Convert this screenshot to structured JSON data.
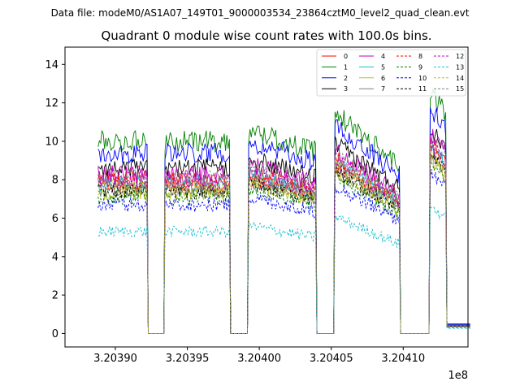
{
  "figure": {
    "supertitle": "Data file: modeM0/AS1A07_149T01_9000003534_23864cztM0_level2_quad_clean.evt",
    "title": "Quadrant 0 module wise count rates with 100.0s bins."
  },
  "chart_data": {
    "type": "line",
    "title": "Quadrant 0 module wise count rates with 100.0s bins.",
    "xlabel": "",
    "ylabel": "",
    "x_offset_label": "1e8",
    "x_range": [
      3.203865,
      3.204145
    ],
    "xlim": [
      3.203865,
      3.204145
    ],
    "ylim": [
      -0.7,
      14.9
    ],
    "x_ticks": [
      3.2039,
      3.20395,
      3.204,
      3.20405,
      3.2041
    ],
    "x_tick_labels": [
      "3.20390",
      "3.20395",
      "3.20400",
      "3.20405",
      "3.20410"
    ],
    "y_ticks": [
      0,
      2,
      4,
      6,
      8,
      10,
      12,
      14
    ],
    "y_tick_labels": [
      "0",
      "2",
      "4",
      "6",
      "8",
      "10",
      "12",
      "14"
    ],
    "legend_position": "top-right",
    "gaps": [
      [
        3.203922,
        3.203934
      ],
      [
        3.20398,
        3.203992
      ],
      [
        3.20404,
        3.204052
      ],
      [
        3.204098,
        3.204118
      ]
    ],
    "series": [
      {
        "name": "0",
        "color": "#ff0000",
        "dash": "solid",
        "level": 8.0
      },
      {
        "name": "1",
        "color": "#008000",
        "dash": "solid",
        "level": 10.0
      },
      {
        "name": "2",
        "color": "#0000ff",
        "dash": "solid",
        "level": 9.4
      },
      {
        "name": "3",
        "color": "#000000",
        "dash": "solid",
        "level": 8.6
      },
      {
        "name": "4",
        "color": "#bf00bf",
        "dash": "solid",
        "level": 8.3
      },
      {
        "name": "5",
        "color": "#17becf",
        "dash": "solid",
        "level": 7.8
      },
      {
        "name": "6",
        "color": "#bcbd22",
        "dash": "solid",
        "level": 7.3
      },
      {
        "name": "7",
        "color": "#7f7f7f",
        "dash": "solid",
        "level": 7.5
      },
      {
        "name": "8",
        "color": "#ff0000",
        "dash": "dashed",
        "level": 7.7
      },
      {
        "name": "9",
        "color": "#008000",
        "dash": "dashed",
        "level": 7.1
      },
      {
        "name": "10",
        "color": "#0000ff",
        "dash": "dashed",
        "level": 6.7
      },
      {
        "name": "11",
        "color": "#000000",
        "dash": "dashed",
        "level": 7.4
      },
      {
        "name": "12",
        "color": "#bf00bf",
        "dash": "dashed",
        "level": 7.9
      },
      {
        "name": "13",
        "color": "#17becf",
        "dash": "dashed",
        "level": 5.3
      },
      {
        "name": "14",
        "color": "#bcbd22",
        "dash": "dashed",
        "level": 7.6
      },
      {
        "name": "15",
        "color": "#7f7f7f",
        "dash": "dashed",
        "level": 8.1
      }
    ]
  }
}
